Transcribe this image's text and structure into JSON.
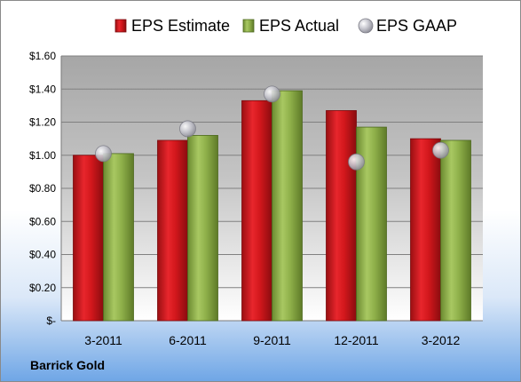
{
  "company_label": "Barrick Gold",
  "colors": {
    "estimate": "#d2171c",
    "actual": "#8fb04a",
    "gaap": "#b8b8c0"
  },
  "chart_data": {
    "type": "bar",
    "categories": [
      "3-2011",
      "6-2011",
      "9-2011",
      "12-2011",
      "3-2012"
    ],
    "series": [
      {
        "name": "EPS Estimate",
        "kind": "bar",
        "values": [
          1.0,
          1.09,
          1.33,
          1.27,
          1.1
        ]
      },
      {
        "name": "EPS Actual",
        "kind": "bar",
        "values": [
          1.01,
          1.12,
          1.39,
          1.17,
          1.09
        ]
      },
      {
        "name": "EPS GAAP",
        "kind": "scatter",
        "values": [
          1.01,
          1.16,
          1.37,
          0.96,
          1.03
        ]
      }
    ],
    "yticks": [
      "$-",
      "$0.20",
      "$0.40",
      "$0.60",
      "$0.80",
      "$1.00",
      "$1.20",
      "$1.40",
      "$1.60"
    ],
    "ylim": [
      0,
      1.6
    ],
    "grid": true,
    "legend": "top"
  }
}
